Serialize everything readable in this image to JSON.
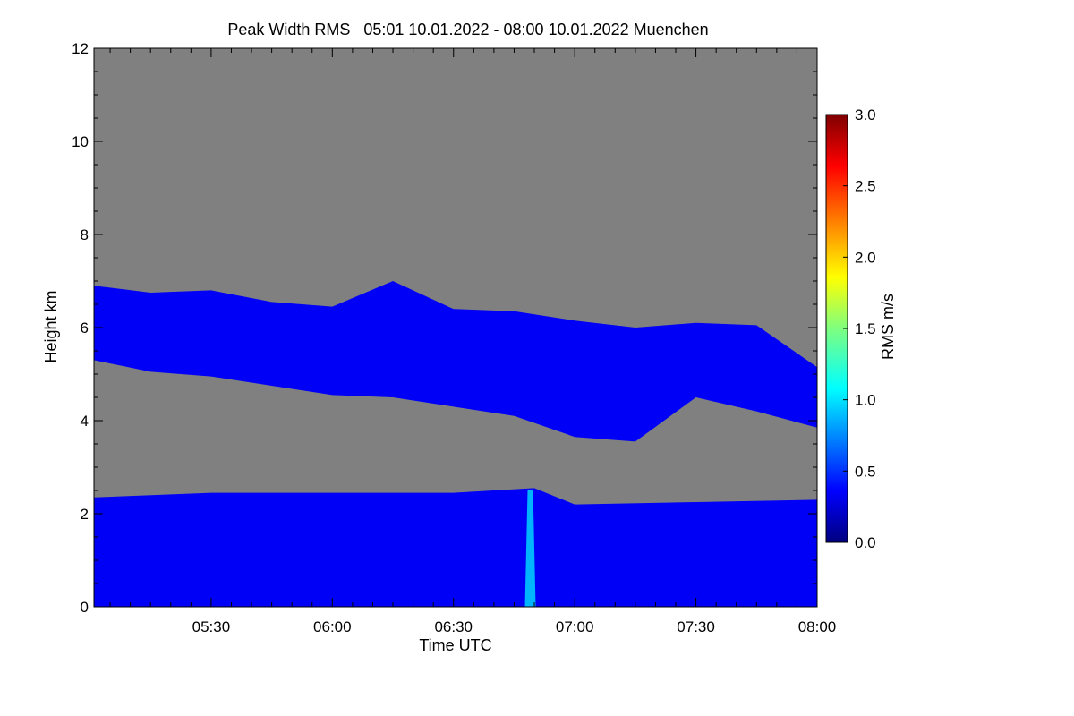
{
  "chart_data": {
    "type": "heatmap",
    "title": "Peak Width RMS   05:01 10.01.2022 - 08:00 10.01.2022 Muenchen",
    "xlabel": "Time UTC",
    "ylabel": "Height km",
    "colorbar_label": "RMS m/s",
    "x_range": [
      "05:01",
      "08:00"
    ],
    "x_ticks": [
      "05:30",
      "06:00",
      "06:30",
      "07:00",
      "07:30",
      "08:00"
    ],
    "y_range": [
      0,
      12
    ],
    "y_ticks": [
      "0",
      "2",
      "4",
      "6",
      "8",
      "10",
      "12"
    ],
    "colorbar_range": [
      0.0,
      3.0
    ],
    "colorbar_ticks": [
      "0.0",
      "0.5",
      "1.0",
      "1.5",
      "2.0",
      "2.5",
      "3.0"
    ],
    "colormap": "jet",
    "missing_color": "#808080",
    "grid": false,
    "layers": [
      {
        "name": "upper-cloud",
        "time": [
          "05:01",
          "05:15",
          "05:30",
          "05:45",
          "06:00",
          "06:15",
          "06:30",
          "06:45",
          "07:00",
          "07:15",
          "07:30",
          "07:45",
          "08:00"
        ],
        "top_km": [
          6.9,
          6.75,
          6.8,
          6.55,
          6.45,
          7.0,
          6.4,
          6.35,
          6.15,
          6.0,
          6.1,
          6.05,
          5.15
        ],
        "base_km": [
          5.3,
          5.05,
          4.95,
          4.75,
          4.55,
          4.5,
          4.3,
          4.1,
          3.65,
          3.55,
          4.5,
          4.2,
          3.85
        ]
      },
      {
        "name": "boundary-layer",
        "time": [
          "05:01",
          "05:30",
          "06:00",
          "06:30",
          "06:50",
          "07:00",
          "07:30",
          "08:00"
        ],
        "top_km": [
          2.35,
          2.45,
          2.45,
          2.45,
          2.55,
          2.2,
          2.25,
          2.3
        ],
        "base_km": [
          0,
          0,
          0,
          0,
          0,
          0,
          0,
          0
        ]
      }
    ],
    "typical_rms": 0.35,
    "peak_feature": {
      "time": "06:49",
      "top_km": 2.5,
      "rms": 1.0
    }
  }
}
